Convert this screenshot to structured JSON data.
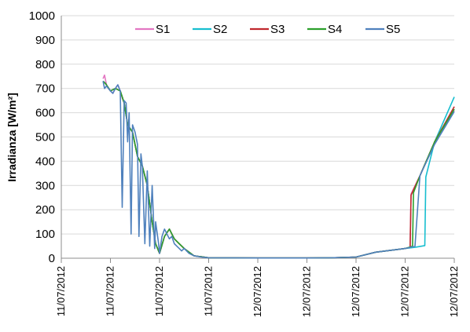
{
  "chart_data": {
    "type": "line",
    "ylabel": "Irradianza [W/m²]",
    "xlabel": "",
    "ylim": [
      0,
      1000
    ],
    "yticks": [
      0,
      100,
      200,
      300,
      400,
      500,
      600,
      700,
      800,
      900,
      1000
    ],
    "x_tick_labels": [
      "11/07/2012",
      "11/07/2012",
      "11/07/2012",
      "11/07/2012",
      "12/07/2012",
      "12/07/2012",
      "12/07/2012",
      "12/07/2012",
      "12/07/2012"
    ],
    "xlim": [
      0,
      8
    ],
    "grid": true,
    "legend_position": "top",
    "series": [
      {
        "name": "S1",
        "color": "#e377c2",
        "x": [
          0.85,
          0.88,
          0.92,
          0.96,
          1.0,
          1.05,
          1.1,
          1.15,
          1.2,
          1.24,
          1.28,
          1.35,
          1.45,
          1.55,
          1.65,
          1.75,
          1.85,
          1.92,
          2.0,
          2.1,
          2.2,
          2.3,
          2.4,
          2.5,
          2.7,
          3.0,
          4.0,
          5.0,
          5.5,
          6.0,
          6.4,
          6.8,
          7.0,
          7.1,
          7.12,
          7.3,
          7.6,
          8.0
        ],
        "y": [
          740,
          755,
          715,
          700,
          690,
          680,
          700,
          715,
          690,
          660,
          640,
          550,
          520,
          420,
          380,
          300,
          150,
          60,
          20,
          90,
          120,
          80,
          60,
          40,
          10,
          2,
          1,
          1,
          2,
          5,
          25,
          35,
          40,
          45,
          265,
          340,
          480,
          610
        ]
      },
      {
        "name": "S2",
        "color": "#17becf",
        "x": [
          0.85,
          0.9,
          1.0,
          1.1,
          1.2,
          1.28,
          1.35,
          1.45,
          1.55,
          1.65,
          1.75,
          1.85,
          1.92,
          2.0,
          2.1,
          2.2,
          2.3,
          2.4,
          2.5,
          2.7,
          3.0,
          4.0,
          5.0,
          5.5,
          6.0,
          6.4,
          6.8,
          7.0,
          7.2,
          7.4,
          7.42,
          7.6,
          8.0
        ],
        "y": [
          730,
          720,
          690,
          700,
          690,
          640,
          550,
          520,
          420,
          380,
          300,
          150,
          60,
          20,
          90,
          120,
          80,
          60,
          40,
          10,
          2,
          1,
          1,
          2,
          5,
          25,
          35,
          40,
          45,
          52,
          335,
          480,
          665
        ]
      },
      {
        "name": "S3",
        "color": "#c0282d",
        "x": [
          0.85,
          0.9,
          1.0,
          1.1,
          1.2,
          1.28,
          1.35,
          1.45,
          1.55,
          1.65,
          1.75,
          1.85,
          1.92,
          2.0,
          2.1,
          2.2,
          2.3,
          2.4,
          2.5,
          2.7,
          3.0,
          4.0,
          5.0,
          5.5,
          6.0,
          6.4,
          6.8,
          7.0,
          7.1,
          7.12,
          7.3,
          7.6,
          8.0
        ],
        "y": [
          730,
          720,
          690,
          700,
          690,
          640,
          550,
          520,
          420,
          380,
          300,
          150,
          60,
          20,
          90,
          120,
          80,
          60,
          40,
          10,
          2,
          1,
          1,
          2,
          5,
          25,
          35,
          40,
          45,
          260,
          340,
          480,
          625
        ]
      },
      {
        "name": "S4",
        "color": "#2ca02c",
        "x": [
          0.85,
          0.9,
          1.0,
          1.1,
          1.2,
          1.28,
          1.35,
          1.45,
          1.55,
          1.65,
          1.75,
          1.85,
          1.92,
          2.0,
          2.1,
          2.2,
          2.3,
          2.4,
          2.5,
          2.7,
          3.0,
          4.0,
          5.0,
          5.5,
          6.0,
          6.4,
          6.8,
          7.0,
          7.15,
          7.17,
          7.3,
          7.6,
          8.0
        ],
        "y": [
          730,
          720,
          690,
          700,
          690,
          640,
          550,
          520,
          420,
          380,
          300,
          150,
          60,
          20,
          90,
          120,
          80,
          60,
          40,
          10,
          2,
          1,
          1,
          2,
          5,
          25,
          35,
          40,
          50,
          270,
          340,
          480,
          615
        ]
      },
      {
        "name": "S5",
        "color": "#4f81bd",
        "x": [
          0.85,
          0.88,
          0.92,
          0.96,
          1.0,
          1.05,
          1.1,
          1.15,
          1.2,
          1.24,
          1.28,
          1.32,
          1.35,
          1.38,
          1.42,
          1.45,
          1.5,
          1.55,
          1.58,
          1.62,
          1.65,
          1.7,
          1.75,
          1.8,
          1.85,
          1.9,
          1.92,
          1.98,
          2.0,
          2.05,
          2.1,
          2.15,
          2.2,
          2.25,
          2.3,
          2.35,
          2.4,
          2.45,
          2.5,
          2.6,
          2.7,
          2.85,
          3.0,
          4.0,
          5.0,
          5.5,
          6.0,
          6.4,
          6.8,
          7.0,
          7.2,
          7.3,
          7.6,
          8.0
        ],
        "y": [
          730,
          700,
          710,
          700,
          690,
          680,
          700,
          715,
          690,
          210,
          650,
          640,
          480,
          600,
          100,
          550,
          520,
          470,
          90,
          430,
          380,
          60,
          360,
          50,
          300,
          40,
          150,
          60,
          20,
          90,
          120,
          100,
          80,
          90,
          60,
          50,
          40,
          30,
          40,
          20,
          10,
          5,
          2,
          1,
          1,
          2,
          5,
          25,
          35,
          40,
          50,
          340,
          470,
          605
        ]
      }
    ]
  }
}
